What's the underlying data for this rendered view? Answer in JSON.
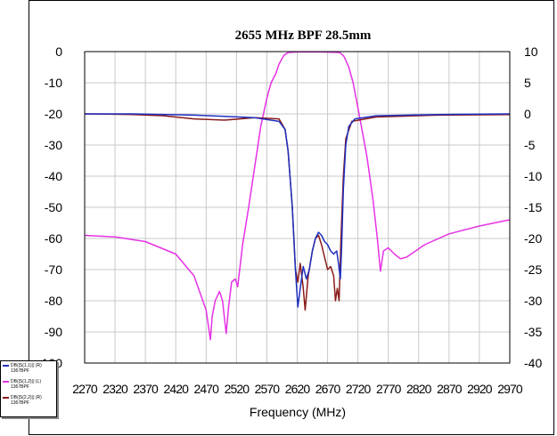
{
  "chart_data": {
    "type": "line",
    "title": "2655 MHz BPF 28.5mm",
    "xlabel": "Frequency (MHz)",
    "xlim": [
      2270,
      2970
    ],
    "x_ticks": [
      "2270",
      "2320",
      "2370",
      "2420",
      "2470",
      "2520",
      "2570",
      "2620",
      "2670",
      "2720",
      "2770",
      "2820",
      "2870",
      "2920",
      "2970"
    ],
    "ylim_left": [
      -100,
      0
    ],
    "y_ticks_left": [
      "0",
      "-10",
      "-20",
      "-30",
      "-40",
      "-50",
      "-60",
      "-70",
      "-80",
      "-90",
      "-100"
    ],
    "ylim_right": [
      -40,
      10
    ],
    "y_ticks_right": [
      "10",
      "5",
      "0",
      "-5",
      "-10",
      "-15",
      "-20",
      "-25",
      "-30",
      "-35",
      "-40"
    ],
    "grid": true,
    "legend_position": "bottom-left",
    "series": [
      {
        "name": "DB(|S(1,1)|) (R)",
        "source": "1367BPF",
        "axis": "right",
        "color": "#1f2fbf",
        "points": [
          [
            2270,
            0
          ],
          [
            2350,
            0
          ],
          [
            2450,
            -0.2
          ],
          [
            2550,
            -0.6
          ],
          [
            2590,
            -1.2
          ],
          [
            2600,
            -2.5
          ],
          [
            2605,
            -6
          ],
          [
            2612,
            -15
          ],
          [
            2617,
            -25
          ],
          [
            2621,
            -31
          ],
          [
            2625,
            -28
          ],
          [
            2630,
            -24.5
          ],
          [
            2635,
            -26.5
          ],
          [
            2640,
            -25
          ],
          [
            2645,
            -22
          ],
          [
            2650,
            -20
          ],
          [
            2655,
            -19
          ],
          [
            2660,
            -19.5
          ],
          [
            2665,
            -20.5
          ],
          [
            2670,
            -21
          ],
          [
            2675,
            -22
          ],
          [
            2680,
            -22.5
          ],
          [
            2685,
            -22
          ],
          [
            2688,
            -24
          ],
          [
            2691,
            -26.5
          ],
          [
            2693,
            -22
          ],
          [
            2696,
            -12
          ],
          [
            2700,
            -5
          ],
          [
            2705,
            -2
          ],
          [
            2715,
            -0.8
          ],
          [
            2750,
            -0.3
          ],
          [
            2850,
            -0.1
          ],
          [
            2970,
            0
          ]
        ]
      },
      {
        "name": "DB(|S(1,2)|) (L)",
        "source": "1367BPF",
        "axis": "left",
        "color": "#e632e6",
        "points": [
          [
            2270,
            -59
          ],
          [
            2320,
            -59.5
          ],
          [
            2370,
            -61
          ],
          [
            2420,
            -65
          ],
          [
            2450,
            -72
          ],
          [
            2470,
            -83
          ],
          [
            2477,
            -92.5
          ],
          [
            2480,
            -85
          ],
          [
            2485,
            -80
          ],
          [
            2492,
            -77
          ],
          [
            2497,
            -80
          ],
          [
            2503,
            -90.5
          ],
          [
            2507,
            -82
          ],
          [
            2512,
            -74
          ],
          [
            2518,
            -73
          ],
          [
            2522,
            -75.5
          ],
          [
            2530,
            -62
          ],
          [
            2540,
            -50
          ],
          [
            2550,
            -37
          ],
          [
            2560,
            -24
          ],
          [
            2570,
            -15
          ],
          [
            2577,
            -10
          ],
          [
            2585,
            -7
          ],
          [
            2590,
            -4
          ],
          [
            2598,
            -1.2
          ],
          [
            2605,
            -0.3
          ],
          [
            2620,
            -0.1
          ],
          [
            2660,
            -0.1
          ],
          [
            2690,
            -0.3
          ],
          [
            2697,
            -1.5
          ],
          [
            2705,
            -5
          ],
          [
            2712,
            -10
          ],
          [
            2720,
            -18
          ],
          [
            2735,
            -34
          ],
          [
            2745,
            -48
          ],
          [
            2752,
            -60
          ],
          [
            2757,
            -70.5
          ],
          [
            2762,
            -64
          ],
          [
            2770,
            -63
          ],
          [
            2780,
            -65
          ],
          [
            2790,
            -66.5
          ],
          [
            2800,
            -66
          ],
          [
            2830,
            -62
          ],
          [
            2870,
            -58.5
          ],
          [
            2920,
            -56
          ],
          [
            2970,
            -54
          ]
        ]
      },
      {
        "name": "DB(|S(2,2)|) (R)",
        "source": "1367BPF",
        "axis": "right",
        "color": "#8b1a1a",
        "points": [
          [
            2270,
            0
          ],
          [
            2350,
            -0.1
          ],
          [
            2400,
            -0.3
          ],
          [
            2450,
            -0.8
          ],
          [
            2500,
            -1.0
          ],
          [
            2550,
            -0.6
          ],
          [
            2590,
            -0.8
          ],
          [
            2600,
            -2.5
          ],
          [
            2605,
            -6
          ],
          [
            2612,
            -15
          ],
          [
            2617,
            -25
          ],
          [
            2621,
            -27
          ],
          [
            2625,
            -24
          ],
          [
            2630,
            -28
          ],
          [
            2633,
            -31.5
          ],
          [
            2638,
            -26
          ],
          [
            2645,
            -22
          ],
          [
            2650,
            -20
          ],
          [
            2655,
            -19.5
          ],
          [
            2660,
            -21
          ],
          [
            2665,
            -23
          ],
          [
            2670,
            -25
          ],
          [
            2675,
            -24.5
          ],
          [
            2680,
            -26
          ],
          [
            2683,
            -30
          ],
          [
            2686,
            -28
          ],
          [
            2689,
            -30
          ],
          [
            2692,
            -20
          ],
          [
            2696,
            -10
          ],
          [
            2700,
            -4
          ],
          [
            2710,
            -1.2
          ],
          [
            2750,
            -0.5
          ],
          [
            2850,
            -0.2
          ],
          [
            2970,
            -0.1
          ]
        ]
      }
    ]
  },
  "legend": {
    "entries": [
      {
        "line1": "DB(|S(1,1)|) (R)",
        "line2": "1367BPF",
        "color": "#1f2fbf"
      },
      {
        "line1": "DB(|S(1,2)|) (L)",
        "line2": "1367BPF",
        "color": "#e632e6"
      },
      {
        "line1": "DB(|S(2,2)|) (R)",
        "line2": "1367BPF",
        "color": "#8b1a1a"
      }
    ]
  }
}
